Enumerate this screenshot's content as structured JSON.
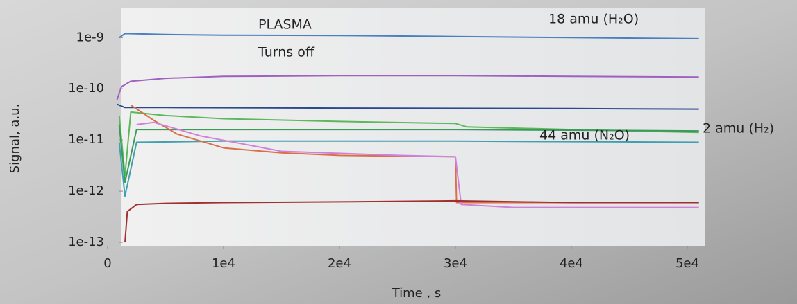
{
  "chart_data": {
    "type": "line",
    "x_label": "Time , s",
    "y_label": "Signal, a.u.",
    "log_y": true,
    "xlim": [
      0,
      51500
    ],
    "ylim": [
      1e-13,
      3.4e-09
    ],
    "xticks": [
      0,
      {
        "value": 10000,
        "label": "1e4"
      },
      {
        "value": 20000,
        "label": "2e4"
      },
      {
        "value": 30000,
        "label": "3e4"
      },
      {
        "value": 40000,
        "label": "4e4"
      },
      {
        "value": 50000,
        "label": "5e4"
      }
    ],
    "yticks": [
      1e-13,
      1e-12,
      1e-11,
      1e-10,
      1e-09
    ],
    "annotations": [
      "PLASMA",
      "Turns off",
      "18 amu (H₂O)",
      "44 amu (N₂O)",
      "2 amu (H₂)"
    ],
    "series": [
      {
        "color": "#4a7fc0",
        "x": [
          1000,
          1500,
          5000,
          10000,
          20000,
          30000,
          40000,
          51000
        ],
        "values": [
          1e-09,
          1.2e-09,
          1.15e-09,
          1.12e-09,
          1.1e-09,
          1.05e-09,
          1e-09,
          9.5e-10
        ]
      },
      {
        "color": "#a060c0",
        "x": [
          800,
          1200,
          2000,
          5000,
          10000,
          20000,
          30000,
          40000,
          51000
        ],
        "values": [
          6e-11,
          1.1e-10,
          1.4e-10,
          1.6e-10,
          1.75e-10,
          1.8e-10,
          1.8e-10,
          1.75e-10,
          1.7e-10
        ]
      },
      {
        "color": "#2a4a90",
        "x": [
          800,
          1500,
          5000,
          20000,
          40000,
          51000
        ],
        "values": [
          5e-11,
          4.3e-11,
          4.3e-11,
          4.2e-11,
          4.1e-11,
          4e-11
        ]
      },
      {
        "color": "#5cb85c",
        "x": [
          1000,
          1500,
          2000,
          5000,
          10000,
          20000,
          30000,
          31000,
          40000,
          51000
        ],
        "values": [
          3e-11,
          2e-12,
          3.5e-11,
          3e-11,
          2.6e-11,
          2.3e-11,
          2.1e-11,
          1.8e-11,
          1.6e-11,
          1.4e-11
        ]
      },
      {
        "color": "#3a9a5a",
        "x": [
          1000,
          1500,
          2500,
          10000,
          30000,
          51000
        ],
        "values": [
          2e-11,
          1.5e-12,
          1.6e-11,
          1.6e-11,
          1.6e-11,
          1.5e-11
        ]
      },
      {
        "color": "#40a0b0",
        "x": [
          1000,
          1500,
          2500,
          10000,
          30000,
          51000
        ],
        "values": [
          9e-12,
          8e-13,
          9e-12,
          9.5e-12,
          9.5e-12,
          9e-12
        ]
      },
      {
        "color": "#d9704a",
        "x": [
          2000,
          4000,
          6000,
          10000,
          15000,
          20000,
          30000,
          30100,
          40000,
          51000
        ],
        "values": [
          4.8e-11,
          2.4e-11,
          1.3e-11,
          7e-12,
          5.6e-12,
          5e-12,
          4.7e-12,
          6e-13,
          6e-13,
          6e-13
        ]
      },
      {
        "color": "#d080d8",
        "x": [
          2500,
          4000,
          8000,
          15000,
          25000,
          30000,
          30500,
          35000,
          45000,
          51000
        ],
        "values": [
          2e-11,
          2.2e-11,
          1.2e-11,
          6e-12,
          5e-12,
          4.7e-12,
          5.5e-13,
          4.8e-13,
          4.8e-13,
          4.8e-13
        ]
      },
      {
        "color": "#a03030",
        "x": [
          1500,
          1700,
          2500,
          5000,
          10000,
          20000,
          30000,
          40000,
          51000
        ],
        "values": [
          1e-13,
          4e-13,
          5.5e-13,
          5.8e-13,
          6e-13,
          6.2e-13,
          6.5e-13,
          6e-13,
          6e-13
        ]
      }
    ]
  }
}
